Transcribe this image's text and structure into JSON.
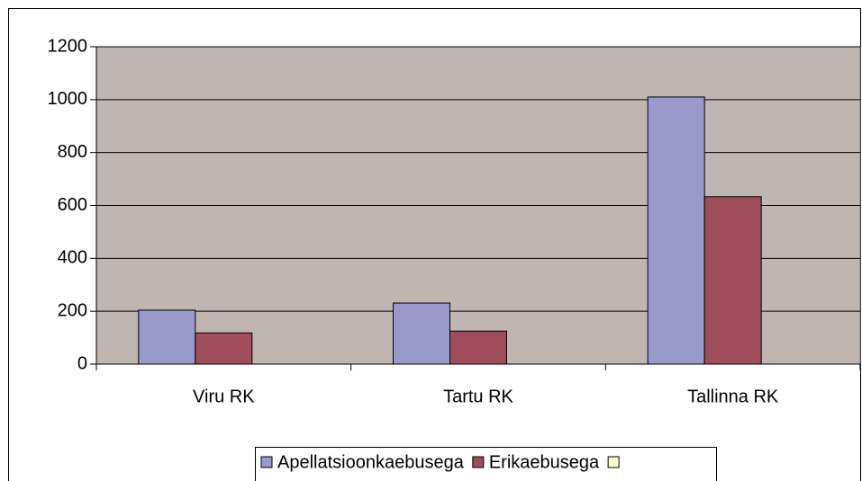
{
  "chart_data": {
    "type": "bar",
    "categories": [
      "Viru RK",
      "Tartu RK",
      "Tallinna RK"
    ],
    "series": [
      {
        "name": "Apellatsioonkaebusega",
        "color": "#9999cc",
        "values": [
          204,
          231,
          1010
        ]
      },
      {
        "name": "Erikaebusega",
        "color": "#a04d5b",
        "values": [
          118,
          125,
          633
        ]
      },
      {
        "name": null,
        "color": "#ffffcc",
        "values": [
          null,
          null,
          null
        ]
      }
    ],
    "ylim": [
      0,
      1200
    ],
    "yticks": [
      0,
      200,
      400,
      600,
      800,
      1000,
      1200
    ],
    "grid": true,
    "legend": "bottom"
  }
}
